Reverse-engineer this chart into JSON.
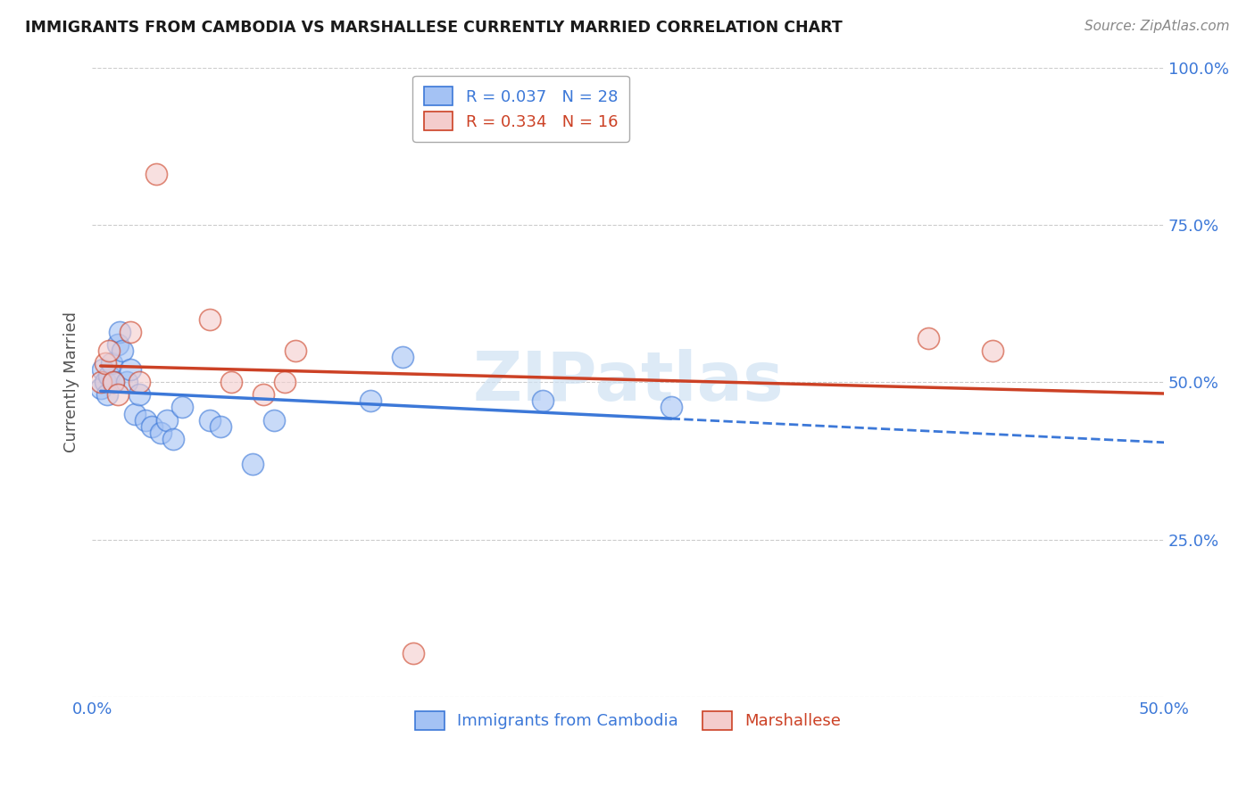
{
  "title": "IMMIGRANTS FROM CAMBODIA VS MARSHALLESE CURRENTLY MARRIED CORRELATION CHART",
  "source": "Source: ZipAtlas.com",
  "ylabel": "Currently Married",
  "xticks": [
    0.0,
    0.1,
    0.2,
    0.3,
    0.4,
    0.5
  ],
  "xtick_labels": [
    "0.0%",
    "",
    "",
    "",
    "",
    "50.0%"
  ],
  "yticks": [
    0.0,
    0.25,
    0.5,
    0.75,
    1.0
  ],
  "ytick_labels": [
    "",
    "25.0%",
    "50.0%",
    "75.0%",
    "100.0%"
  ],
  "xlim": [
    0.0,
    0.5
  ],
  "ylim": [
    0.0,
    1.0
  ],
  "legend_label1": "R = 0.037   N = 28",
  "legend_label2": "R = 0.334   N = 16",
  "legend_sublabel1": "Immigrants from Cambodia",
  "legend_sublabel2": "Marshallese",
  "blue_color": "#a4c2f4",
  "pink_color": "#f4cccc",
  "blue_line_color": "#3c78d8",
  "pink_line_color": "#cc4125",
  "axis_label_color": "#3c78d8",
  "watermark_color": "#cfe2f3",
  "blue_scatter_x": [
    0.004,
    0.005,
    0.006,
    0.007,
    0.008,
    0.009,
    0.01,
    0.012,
    0.013,
    0.014,
    0.016,
    0.018,
    0.02,
    0.022,
    0.025,
    0.028,
    0.032,
    0.035,
    0.038,
    0.042,
    0.055,
    0.06,
    0.075,
    0.085,
    0.13,
    0.145,
    0.21,
    0.27
  ],
  "blue_scatter_y": [
    0.49,
    0.52,
    0.5,
    0.48,
    0.51,
    0.53,
    0.5,
    0.56,
    0.58,
    0.55,
    0.5,
    0.52,
    0.45,
    0.48,
    0.44,
    0.43,
    0.42,
    0.44,
    0.41,
    0.46,
    0.44,
    0.43,
    0.37,
    0.44,
    0.47,
    0.54,
    0.47,
    0.46
  ],
  "pink_scatter_x": [
    0.004,
    0.006,
    0.008,
    0.01,
    0.012,
    0.018,
    0.022,
    0.03,
    0.055,
    0.065,
    0.08,
    0.09,
    0.095,
    0.15,
    0.39,
    0.42
  ],
  "pink_scatter_y": [
    0.5,
    0.53,
    0.55,
    0.5,
    0.48,
    0.58,
    0.5,
    0.83,
    0.6,
    0.5,
    0.48,
    0.5,
    0.55,
    0.07,
    0.57,
    0.55
  ],
  "blue_line_x_end": 0.27,
  "pink_line_x_end": 0.5
}
